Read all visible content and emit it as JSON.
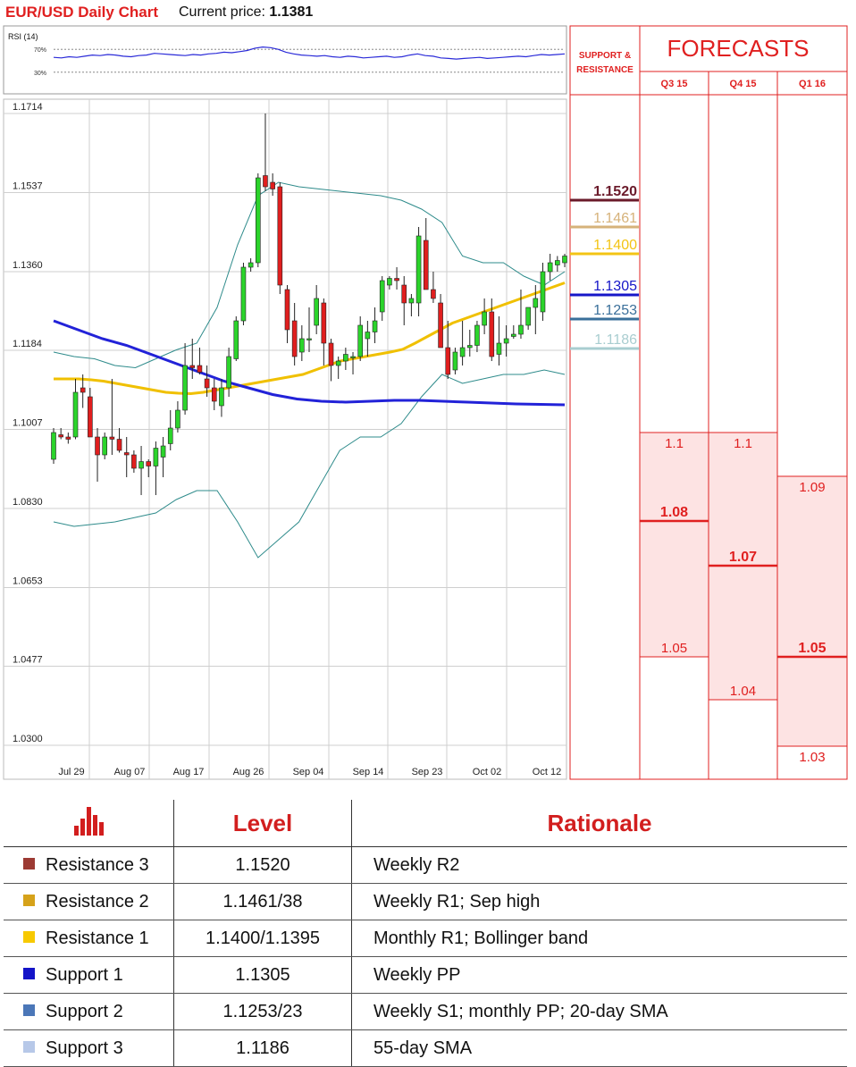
{
  "header": {
    "title": "EUR/USD Daily Chart",
    "price_label": "Current price:",
    "price_value": "1.1381"
  },
  "chart_data": {
    "type": "candlestick",
    "title": "EUR/USD Daily Chart",
    "current_price": 1.1381,
    "ylim": [
      1.03,
      1.1714
    ],
    "y_ticks": [
      "1.1714",
      "1.1537",
      "1.1360",
      "1.1184",
      "1.1007",
      "1.0830",
      "1.0653",
      "1.0477",
      "1.0300"
    ],
    "x_ticks": [
      "Jul 29",
      "Aug 07",
      "Aug 17",
      "Aug 26",
      "Sep 04",
      "Sep 14",
      "Sep 23",
      "Oct 02",
      "Oct 12"
    ],
    "rsi": {
      "label": "RSI (14)",
      "levels": [
        "70%",
        "30%"
      ],
      "values": [
        56,
        55,
        57,
        56,
        58,
        60,
        59,
        61,
        60,
        58,
        57,
        59,
        60,
        63,
        62,
        61,
        60,
        59,
        61,
        60,
        62,
        63,
        65,
        64,
        66,
        68,
        72,
        74,
        73,
        70,
        65,
        62,
        60,
        59,
        58,
        59,
        57,
        56,
        58,
        57,
        55,
        56,
        57,
        58,
        56,
        57,
        60,
        62,
        59,
        58,
        55,
        54,
        53,
        54,
        55,
        56,
        54,
        55,
        56,
        57,
        58,
        57,
        59,
        61,
        60,
        61,
        62
      ]
    },
    "candles": [
      [
        1.094,
        1.101,
        1.093,
        1.1
      ],
      [
        1.0995,
        1.101,
        1.0985,
        1.099
      ],
      [
        1.099,
        1.1,
        1.0975,
        1.0985
      ],
      [
        1.099,
        1.112,
        1.0985,
        1.109
      ],
      [
        1.11,
        1.113,
        1.1055,
        1.109
      ],
      [
        1.108,
        1.11,
        1.1,
        1.099
      ],
      [
        1.099,
        1.101,
        1.089,
        1.095
      ],
      [
        1.095,
        1.1,
        1.094,
        1.099
      ],
      [
        1.099,
        1.112,
        1.095,
        1.0985
      ],
      [
        1.0985,
        1.101,
        1.0955,
        1.096
      ],
      [
        1.0955,
        1.099,
        1.09,
        1.095
      ],
      [
        1.095,
        1.096,
        1.091,
        1.092
      ],
      [
        1.092,
        1.097,
        1.086,
        1.0935
      ],
      [
        1.0935,
        1.094,
        1.09,
        1.0925
      ],
      [
        1.0925,
        1.098,
        1.086,
        1.0965
      ],
      [
        1.0945,
        1.099,
        1.09,
        1.097
      ],
      [
        1.0975,
        1.105,
        1.096,
        1.101
      ],
      [
        1.101,
        1.107,
        1.1,
        1.105
      ],
      [
        1.105,
        1.12,
        1.104,
        1.115
      ],
      [
        1.115,
        1.121,
        1.112,
        1.1145
      ],
      [
        1.115,
        1.119,
        1.113,
        1.1135
      ],
      [
        1.112,
        1.115,
        1.108,
        1.11
      ],
      [
        1.11,
        1.112,
        1.105,
        1.107
      ],
      [
        1.106,
        1.112,
        1.1035,
        1.11
      ],
      [
        1.11,
        1.119,
        1.108,
        1.117
      ],
      [
        1.1165,
        1.126,
        1.116,
        1.125
      ],
      [
        1.125,
        1.138,
        1.124,
        1.137
      ],
      [
        1.137,
        1.139,
        1.136,
        1.138
      ],
      [
        1.138,
        1.158,
        1.137,
        1.157
      ],
      [
        1.1575,
        1.1714,
        1.154,
        1.155
      ],
      [
        1.156,
        1.158,
        1.153,
        1.1545
      ],
      [
        1.155,
        1.156,
        1.131,
        1.133
      ],
      [
        1.132,
        1.133,
        1.12,
        1.123
      ],
      [
        1.125,
        1.129,
        1.115,
        1.117
      ],
      [
        1.118,
        1.124,
        1.116,
        1.121
      ],
      [
        1.121,
        1.128,
        1.118,
        1.121
      ],
      [
        1.124,
        1.133,
        1.122,
        1.13
      ],
      [
        1.129,
        1.13,
        1.115,
        1.12
      ],
      [
        1.12,
        1.121,
        1.1115,
        1.115
      ],
      [
        1.115,
        1.117,
        1.112,
        1.116
      ],
      [
        1.116,
        1.119,
        1.114,
        1.1175
      ],
      [
        1.117,
        1.118,
        1.113,
        1.117
      ],
      [
        1.117,
        1.126,
        1.116,
        1.124
      ],
      [
        1.121,
        1.125,
        1.117,
        1.1225
      ],
      [
        1.1225,
        1.128,
        1.12,
        1.125
      ],
      [
        1.127,
        1.135,
        1.125,
        1.134
      ],
      [
        1.133,
        1.135,
        1.132,
        1.1345
      ],
      [
        1.1345,
        1.137,
        1.132,
        1.134
      ],
      [
        1.133,
        1.135,
        1.124,
        1.129
      ],
      [
        1.129,
        1.131,
        1.126,
        1.13
      ],
      [
        1.129,
        1.146,
        1.126,
        1.144
      ],
      [
        1.143,
        1.148,
        1.133,
        1.132
      ],
      [
        1.132,
        1.136,
        1.129,
        1.13
      ],
      [
        1.129,
        1.131,
        1.12,
        1.119
      ],
      [
        1.119,
        1.125,
        1.112,
        1.113
      ],
      [
        1.114,
        1.119,
        1.113,
        1.118
      ],
      [
        1.117,
        1.125,
        1.115,
        1.119
      ],
      [
        1.119,
        1.123,
        1.117,
        1.1195
      ],
      [
        1.1195,
        1.125,
        1.118,
        1.124
      ],
      [
        1.124,
        1.13,
        1.122,
        1.127
      ],
      [
        1.127,
        1.13,
        1.116,
        1.117
      ],
      [
        1.1175,
        1.126,
        1.115,
        1.12
      ],
      [
        1.12,
        1.124,
        1.117,
        1.121
      ],
      [
        1.1215,
        1.124,
        1.121,
        1.122
      ],
      [
        1.122,
        1.132,
        1.121,
        1.124
      ],
      [
        1.124,
        1.127,
        1.123,
        1.128
      ],
      [
        1.128,
        1.133,
        1.122,
        1.13
      ],
      [
        1.127,
        1.138,
        1.125,
        1.136
      ],
      [
        1.136,
        1.14,
        1.134,
        1.138
      ],
      [
        1.1375,
        1.1395,
        1.136,
        1.1385
      ],
      [
        1.138,
        1.14,
        1.137,
        1.1395
      ]
    ],
    "sma_55": [
      1.112,
      1.112,
      1.112,
      1.1118,
      1.1115,
      1.111,
      1.1105,
      1.11,
      1.1095,
      1.109,
      1.1088,
      1.1087,
      1.109,
      1.1095,
      1.11,
      1.1105,
      1.111,
      1.1115,
      1.112,
      1.1125,
      1.113,
      1.114,
      1.115,
      1.116,
      1.1165,
      1.117,
      1.1175,
      1.118,
      1.1186,
      1.12,
      1.1215,
      1.123,
      1.1245,
      1.1255,
      1.1265,
      1.1275,
      1.1285,
      1.1295,
      1.1305,
      1.1315,
      1.1325,
      1.1335
    ],
    "sma_200": [
      1.125,
      1.123,
      1.121,
      1.1195,
      1.1175,
      1.1155,
      1.1135,
      1.1115,
      1.11,
      1.1085,
      1.1075,
      1.107,
      1.1068,
      1.107,
      1.1072,
      1.1072,
      1.107,
      1.1068,
      1.1066,
      1.1064,
      1.1063,
      1.1062
    ],
    "bb_upper": [
      1.118,
      1.117,
      1.1165,
      1.115,
      1.1145,
      1.1165,
      1.1185,
      1.12,
      1.128,
      1.142,
      1.153,
      1.156,
      1.155,
      1.1545,
      1.154,
      1.1535,
      1.153,
      1.152,
      1.15,
      1.147,
      1.1395,
      1.138,
      1.138,
      1.135,
      1.133,
      1.136
    ],
    "bb_lower": [
      1.08,
      1.079,
      1.0795,
      1.08,
      1.081,
      1.082,
      1.085,
      1.087,
      1.087,
      1.08,
      1.072,
      1.076,
      1.08,
      1.088,
      1.096,
      1.099,
      1.099,
      1.102,
      1.108,
      1.113,
      1.111,
      1.112,
      1.113,
      1.113,
      1.114,
      1.113
    ],
    "support_resistance": [
      {
        "value": "1.1520",
        "color": "#6a1a2a"
      },
      {
        "value": "1.1461",
        "color": "#d6b27a"
      },
      {
        "value": "1.1400",
        "color": "#f3c414"
      },
      {
        "value": "1.1305",
        "color": "#1616c8"
      },
      {
        "value": "1.1253",
        "color": "#3a6f9a"
      },
      {
        "value": "1.1186",
        "color": "#a9cdd0"
      }
    ],
    "forecasts": {
      "title": "FORECASTS",
      "sr_header": "SUPPORT & RESISTANCE",
      "columns": [
        {
          "name": "Q3 15",
          "high": "1.1",
          "mid": "1.08",
          "low": "1.05"
        },
        {
          "name": "Q4 15",
          "high": "1.1",
          "mid": "1.07",
          "low": "1.04"
        },
        {
          "name": "Q1 16",
          "high": "1.09",
          "mid": "1.05",
          "low": "1.03"
        }
      ]
    }
  },
  "table": {
    "headers": [
      "Level",
      "Rationale"
    ],
    "rows": [
      {
        "name": "Resistance 3",
        "level": "1.1520",
        "rationale": "Weekly R2",
        "color": "#9c3a33"
      },
      {
        "name": "Resistance 2",
        "level": "1.1461/38",
        "rationale": "Weekly R1; Sep high",
        "color": "#d6a21a"
      },
      {
        "name": "Resistance 1",
        "level": "1.1400/1.1395",
        "rationale": "Monthly R1; Bollinger band",
        "color": "#f7c900"
      },
      {
        "name": "Support 1",
        "level": "1.1305",
        "rationale": "Weekly PP",
        "color": "#1414c8"
      },
      {
        "name": "Support 2",
        "level": "1.1253/23",
        "rationale": "Weekly S1; monthly PP; 20-day SMA",
        "color": "#4b77b8"
      },
      {
        "name": "Support 3",
        "level": "1.1186",
        "rationale": "55-day SMA",
        "color": "#b7c8e8"
      }
    ]
  }
}
